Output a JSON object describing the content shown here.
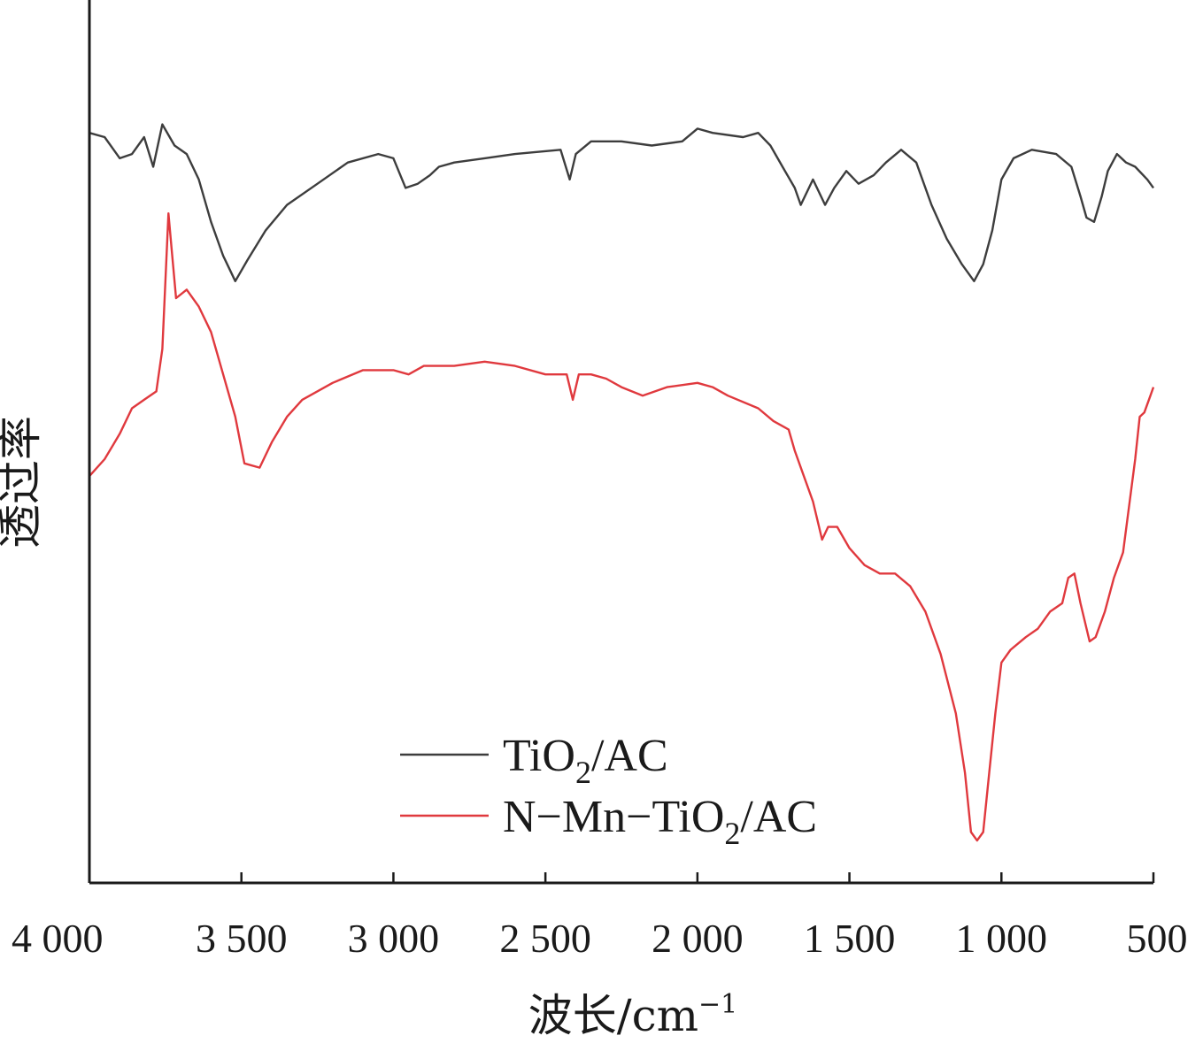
{
  "chart_data": {
    "type": "line",
    "xlabel": "波长/cm",
    "xlabel_sup": "−1",
    "ylabel": "透过率",
    "x_reversed": true,
    "xlim": [
      4000,
      500
    ],
    "ylim": [
      0,
      1
    ],
    "y_ticks_shown": false,
    "x_ticks": [
      4000,
      3500,
      3000,
      2500,
      2000,
      1500,
      1000,
      500
    ],
    "x_tick_labels": [
      "4 000",
      "3 500",
      "3 000",
      "2 500",
      "2 000",
      "1 500",
      "1 000",
      "500"
    ],
    "grid": false,
    "legend_position": "bottom-center",
    "series": [
      {
        "name": "TiO2/AC",
        "label_parts": {
          "pre": "TiO",
          "sub": "2",
          "post": "/AC"
        },
        "color": "#3d3d3d",
        "points": [
          [
            4000,
            0.885
          ],
          [
            3950,
            0.88
          ],
          [
            3900,
            0.855
          ],
          [
            3860,
            0.86
          ],
          [
            3820,
            0.88
          ],
          [
            3790,
            0.845
          ],
          [
            3760,
            0.895
          ],
          [
            3720,
            0.87
          ],
          [
            3680,
            0.86
          ],
          [
            3640,
            0.83
          ],
          [
            3600,
            0.78
          ],
          [
            3560,
            0.74
          ],
          [
            3520,
            0.71
          ],
          [
            3480,
            0.735
          ],
          [
            3420,
            0.77
          ],
          [
            3350,
            0.8
          ],
          [
            3250,
            0.825
          ],
          [
            3150,
            0.85
          ],
          [
            3050,
            0.86
          ],
          [
            3000,
            0.855
          ],
          [
            2960,
            0.82
          ],
          [
            2920,
            0.825
          ],
          [
            2880,
            0.835
          ],
          [
            2850,
            0.845
          ],
          [
            2800,
            0.85
          ],
          [
            2700,
            0.855
          ],
          [
            2600,
            0.86
          ],
          [
            2450,
            0.865
          ],
          [
            2420,
            0.83
          ],
          [
            2400,
            0.86
          ],
          [
            2350,
            0.875
          ],
          [
            2250,
            0.875
          ],
          [
            2150,
            0.87
          ],
          [
            2050,
            0.875
          ],
          [
            2000,
            0.89
          ],
          [
            1950,
            0.885
          ],
          [
            1850,
            0.88
          ],
          [
            1800,
            0.885
          ],
          [
            1760,
            0.87
          ],
          [
            1720,
            0.845
          ],
          [
            1680,
            0.82
          ],
          [
            1660,
            0.8
          ],
          [
            1620,
            0.83
          ],
          [
            1580,
            0.8
          ],
          [
            1550,
            0.82
          ],
          [
            1510,
            0.84
          ],
          [
            1470,
            0.825
          ],
          [
            1420,
            0.835
          ],
          [
            1380,
            0.85
          ],
          [
            1330,
            0.865
          ],
          [
            1280,
            0.85
          ],
          [
            1230,
            0.8
          ],
          [
            1180,
            0.76
          ],
          [
            1130,
            0.73
          ],
          [
            1090,
            0.71
          ],
          [
            1060,
            0.73
          ],
          [
            1030,
            0.77
          ],
          [
            1000,
            0.83
          ],
          [
            960,
            0.855
          ],
          [
            900,
            0.865
          ],
          [
            820,
            0.86
          ],
          [
            770,
            0.845
          ],
          [
            740,
            0.81
          ],
          [
            720,
            0.785
          ],
          [
            695,
            0.78
          ],
          [
            670,
            0.81
          ],
          [
            650,
            0.84
          ],
          [
            620,
            0.86
          ],
          [
            590,
            0.85
          ],
          [
            560,
            0.845
          ],
          [
            520,
            0.83
          ],
          [
            500,
            0.82
          ]
        ]
      },
      {
        "name": "N−Mn−TiO2/AC",
        "label_parts": {
          "pre": "N−Mn−TiO",
          "sub": "2",
          "post": "/AC"
        },
        "color": "#e0393e",
        "points": [
          [
            4000,
            0.48
          ],
          [
            3950,
            0.5
          ],
          [
            3900,
            0.53
          ],
          [
            3860,
            0.56
          ],
          [
            3820,
            0.57
          ],
          [
            3780,
            0.58
          ],
          [
            3760,
            0.63
          ],
          [
            3740,
            0.79
          ],
          [
            3730,
            0.75
          ],
          [
            3715,
            0.69
          ],
          [
            3680,
            0.7
          ],
          [
            3640,
            0.68
          ],
          [
            3600,
            0.65
          ],
          [
            3560,
            0.6
          ],
          [
            3520,
            0.55
          ],
          [
            3490,
            0.495
          ],
          [
            3440,
            0.49
          ],
          [
            3400,
            0.52
          ],
          [
            3350,
            0.55
          ],
          [
            3300,
            0.57
          ],
          [
            3200,
            0.59
          ],
          [
            3100,
            0.605
          ],
          [
            3000,
            0.605
          ],
          [
            2950,
            0.6
          ],
          [
            2900,
            0.61
          ],
          [
            2800,
            0.61
          ],
          [
            2700,
            0.615
          ],
          [
            2600,
            0.61
          ],
          [
            2500,
            0.6
          ],
          [
            2430,
            0.6
          ],
          [
            2410,
            0.57
          ],
          [
            2390,
            0.6
          ],
          [
            2350,
            0.6
          ],
          [
            2300,
            0.595
          ],
          [
            2250,
            0.585
          ],
          [
            2180,
            0.575
          ],
          [
            2100,
            0.585
          ],
          [
            2000,
            0.59
          ],
          [
            1950,
            0.585
          ],
          [
            1900,
            0.575
          ],
          [
            1800,
            0.56
          ],
          [
            1750,
            0.545
          ],
          [
            1700,
            0.535
          ],
          [
            1680,
            0.51
          ],
          [
            1650,
            0.48
          ],
          [
            1620,
            0.45
          ],
          [
            1590,
            0.405
          ],
          [
            1570,
            0.42
          ],
          [
            1540,
            0.42
          ],
          [
            1500,
            0.395
          ],
          [
            1450,
            0.375
          ],
          [
            1400,
            0.365
          ],
          [
            1350,
            0.365
          ],
          [
            1300,
            0.35
          ],
          [
            1250,
            0.32
          ],
          [
            1200,
            0.27
          ],
          [
            1150,
            0.2
          ],
          [
            1120,
            0.13
          ],
          [
            1100,
            0.06
          ],
          [
            1080,
            0.05
          ],
          [
            1060,
            0.06
          ],
          [
            1040,
            0.13
          ],
          [
            1020,
            0.2
          ],
          [
            1000,
            0.26
          ],
          [
            970,
            0.275
          ],
          [
            920,
            0.29
          ],
          [
            880,
            0.3
          ],
          [
            840,
            0.32
          ],
          [
            800,
            0.33
          ],
          [
            780,
            0.36
          ],
          [
            760,
            0.365
          ],
          [
            740,
            0.33
          ],
          [
            710,
            0.285
          ],
          [
            690,
            0.29
          ],
          [
            660,
            0.32
          ],
          [
            630,
            0.36
          ],
          [
            600,
            0.39
          ],
          [
            560,
            0.5
          ],
          [
            545,
            0.55
          ],
          [
            530,
            0.555
          ],
          [
            510,
            0.575
          ],
          [
            500,
            0.585
          ]
        ]
      }
    ]
  }
}
